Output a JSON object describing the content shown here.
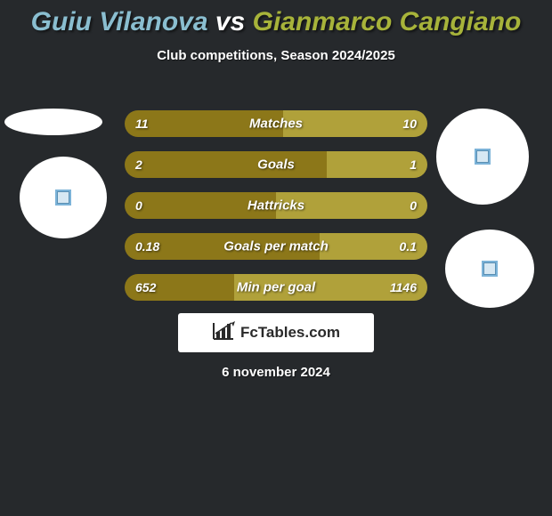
{
  "title": {
    "player1": "Guiu Vilanova",
    "vs": "vs",
    "player2": "Gianmarco Cangiano",
    "fontsize": 30,
    "color1": "#8abed0",
    "color_vs": "#ffffff",
    "color2": "#a7b33a"
  },
  "subtitle": "Club competitions, Season 2024/2025",
  "bars": {
    "left_color": "#8c7719",
    "right_color": "#b0a13a",
    "label_color": "#ffffff",
    "rows": [
      {
        "label": "Matches",
        "left_val": "11",
        "right_val": "10",
        "left_pct": 52.4,
        "right_pct": 47.6
      },
      {
        "label": "Goals",
        "left_val": "2",
        "right_val": "1",
        "left_pct": 66.7,
        "right_pct": 33.3
      },
      {
        "label": "Hattricks",
        "left_val": "0",
        "right_val": "0",
        "left_pct": 50.0,
        "right_pct": 50.0
      },
      {
        "label": "Goals per match",
        "left_val": "0.18",
        "right_val": "0.1",
        "left_pct": 64.3,
        "right_pct": 35.7
      },
      {
        "label": "Min per goal",
        "left_val": "652",
        "right_val": "1146",
        "left_pct": 36.3,
        "right_pct": 63.7
      }
    ]
  },
  "logo": {
    "text": "FcTables.com",
    "icon_color": "#2a2a2a"
  },
  "date": "6 november 2024",
  "background_color": "#26292c",
  "circle_color": "#ffffff"
}
